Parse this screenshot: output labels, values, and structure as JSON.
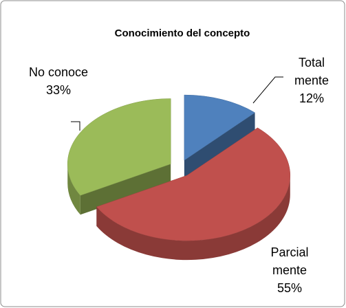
{
  "chart_data": {
    "type": "pie3d",
    "title": "Conocimiento del concepto",
    "categories": [
      "Total mente",
      "Parcial mente",
      "No conoce"
    ],
    "values": [
      12,
      55,
      33
    ],
    "value_labels": [
      "12%",
      "55%",
      "33%"
    ],
    "colors": [
      "#4f81bd",
      "#c0504d",
      "#9bbb59"
    ]
  }
}
